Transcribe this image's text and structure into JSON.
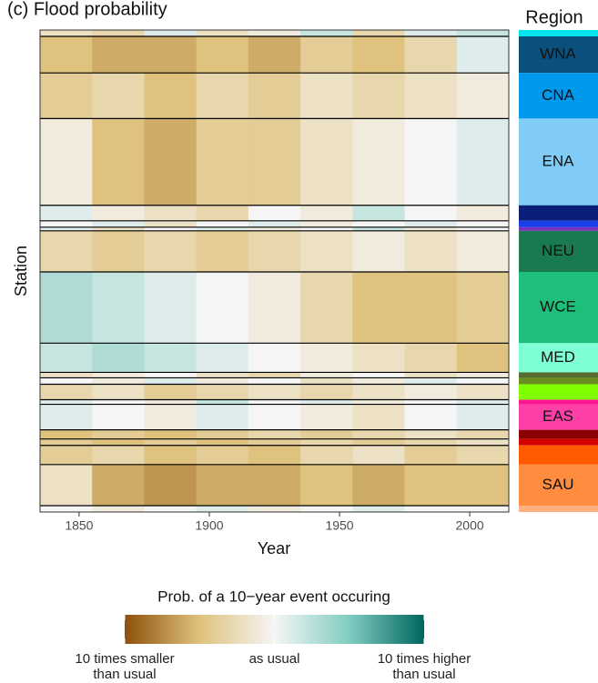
{
  "chart_data": {
    "type": "heatmap",
    "title": "(c) Flood probability",
    "xlabel": "Year",
    "ylabel": "Station",
    "xlim": [
      1835,
      2015
    ],
    "xticks": [
      1850,
      1900,
      1950,
      2000
    ],
    "x_bins": [
      1835,
      1855,
      1875,
      1895,
      1915,
      1935,
      1955,
      1975,
      1995,
      2015
    ],
    "legend_title": "Region",
    "regions": [
      {
        "name": null,
        "color": "#00e5ee",
        "stations": 7
      },
      {
        "name": "WNA",
        "color": "#0b4f7c",
        "stations": 40
      },
      {
        "name": "CNA",
        "color": "#0099ee",
        "stations": 50
      },
      {
        "name": "ENA",
        "color": "#80ccf7",
        "stations": 95
      },
      {
        "name": null,
        "color": "#0a1f7a",
        "stations": 17
      },
      {
        "name": null,
        "color": "#1a3ee8",
        "stations": 7
      },
      {
        "name": null,
        "color": "#7b2fbe",
        "stations": 4
      },
      {
        "name": "NEU",
        "color": "#1a7a4f",
        "stations": 45
      },
      {
        "name": "WCE",
        "color": "#1dbf7a",
        "stations": 78
      },
      {
        "name": "MED",
        "color": "#7fffd4",
        "stations": 32
      },
      {
        "name": null,
        "color": "#556b2f",
        "stations": 6
      },
      {
        "name": null,
        "color": "#6b8e23",
        "stations": 7
      },
      {
        "name": null,
        "color": "#7fff00",
        "stations": 17
      },
      {
        "name": null,
        "color": "#ff1493",
        "stations": 5
      },
      {
        "name": "EAS",
        "color": "#ff3fa8",
        "stations": 28
      },
      {
        "name": null,
        "color": "#8b0000",
        "stations": 10
      },
      {
        "name": null,
        "color": "#d40000",
        "stations": 7
      },
      {
        "name": null,
        "color": "#ff5a00",
        "stations": 21
      },
      {
        "name": "SAU",
        "color": "#ff8c3f",
        "stations": 45
      },
      {
        "name": null,
        "color": "#ffb080",
        "stations": 7
      }
    ],
    "z": [
      [
        -0.2,
        -0.3,
        0.1,
        -0.2,
        -0.1,
        0.2,
        -0.3,
        0.1,
        0.2
      ],
      [
        -0.5,
        -0.6,
        -0.6,
        -0.5,
        -0.6,
        -0.4,
        -0.5,
        -0.3,
        0.1
      ],
      [
        -0.4,
        -0.3,
        -0.5,
        -0.3,
        -0.4,
        -0.2,
        -0.3,
        -0.2,
        -0.1
      ],
      [
        -0.1,
        -0.5,
        -0.6,
        -0.4,
        -0.4,
        -0.2,
        -0.1,
        0.0,
        0.1
      ],
      [
        0.1,
        -0.1,
        -0.2,
        -0.3,
        0.0,
        -0.1,
        0.2,
        0.0,
        -0.1
      ],
      [
        0.0,
        0.1,
        -0.2,
        0.0,
        0.1,
        -0.1,
        0.0,
        0.1,
        0.0
      ],
      [
        0.1,
        -0.2,
        0.0,
        0.1,
        -0.1,
        0.0,
        0.2,
        -0.1,
        0.0
      ],
      [
        -0.3,
        -0.4,
        -0.3,
        -0.4,
        -0.3,
        -0.2,
        -0.1,
        -0.2,
        -0.1
      ],
      [
        0.3,
        0.2,
        0.1,
        0.0,
        -0.1,
        -0.3,
        -0.5,
        -0.5,
        -0.4
      ],
      [
        0.2,
        0.3,
        0.2,
        0.1,
        0.0,
        -0.1,
        -0.2,
        -0.3,
        -0.5
      ],
      [
        -0.2,
        -0.1,
        0.0,
        -0.2,
        -0.3,
        -0.1,
        0.0,
        -0.2,
        -0.1
      ],
      [
        0.0,
        -0.1,
        0.1,
        -0.1,
        0.0,
        -0.2,
        -0.1,
        0.1,
        0.0
      ],
      [
        -0.3,
        -0.2,
        -0.4,
        -0.3,
        -0.2,
        -0.3,
        -0.2,
        -0.1,
        -0.2
      ],
      [
        0.1,
        0.0,
        -0.1,
        0.2,
        0.0,
        0.1,
        -0.1,
        0.0,
        0.1
      ],
      [
        0.1,
        0.0,
        -0.1,
        0.1,
        0.0,
        -0.1,
        -0.2,
        0.0,
        0.1
      ],
      [
        -0.5,
        -0.4,
        -0.5,
        -0.4,
        -0.3,
        -0.4,
        -0.3,
        -0.2,
        -0.3
      ],
      [
        -0.4,
        -0.5,
        -0.4,
        -0.5,
        -0.4,
        -0.3,
        -0.4,
        -0.3,
        -0.2
      ],
      [
        -0.4,
        -0.3,
        -0.5,
        -0.4,
        -0.5,
        -0.3,
        -0.2,
        -0.4,
        -0.3
      ],
      [
        -0.2,
        -0.6,
        -0.7,
        -0.6,
        -0.6,
        -0.5,
        -0.6,
        -0.5,
        -0.5
      ],
      [
        0.0,
        -0.1,
        0.0,
        0.1,
        -0.1,
        0.0,
        0.1,
        0.0,
        0.0
      ]
    ],
    "colorbar_title": "Prob. of a 10−year event occuring",
    "clim": [
      -1,
      1
    ],
    "colorscale": [
      "#8c510a",
      "#dfc27d",
      "#f5f5f5",
      "#80cdc1",
      "#01665e"
    ],
    "colorbar_ticks": [
      {
        "value": -1,
        "label": "10 times smaller\nthan usual"
      },
      {
        "value": 0,
        "label": "as usual"
      },
      {
        "value": 1,
        "label": "10 times higher\nthan usual"
      }
    ]
  }
}
